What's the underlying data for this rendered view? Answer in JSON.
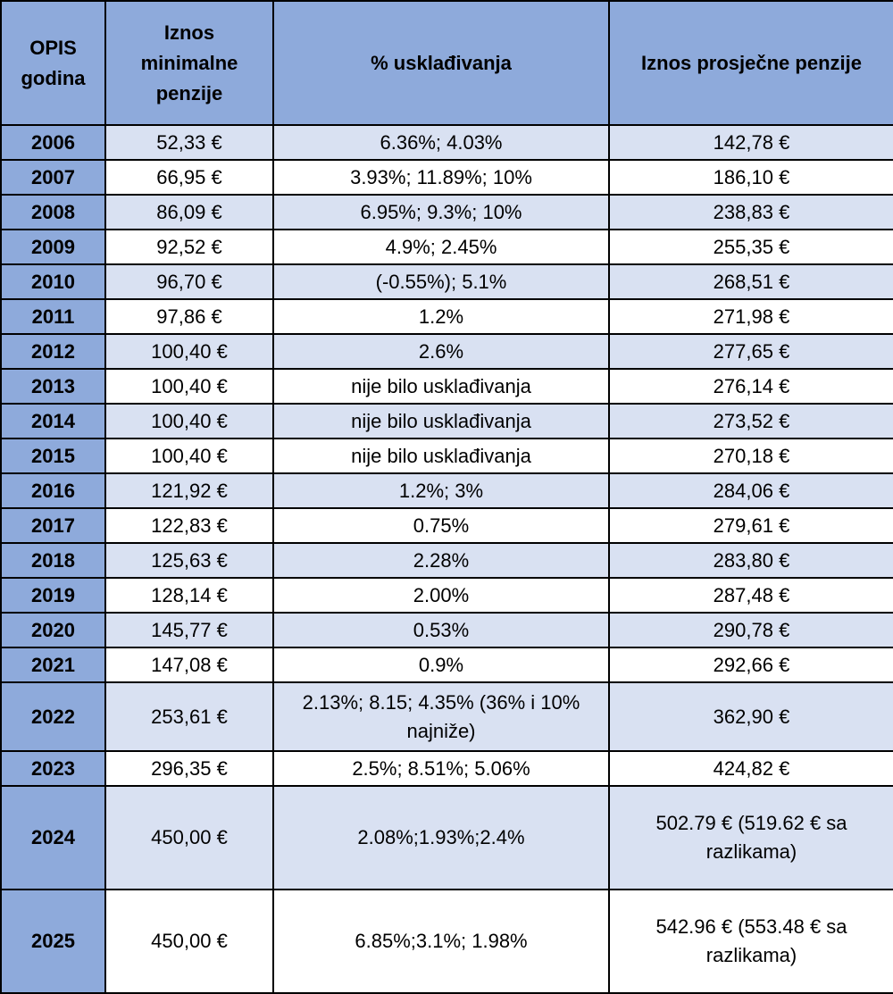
{
  "table": {
    "headers": {
      "year": "OPIS godina",
      "min_pension": "Iznos minimalne penzije",
      "adjustment": "% usklađivanja",
      "avg_pension": "Iznos prosječne penzije"
    },
    "rows": [
      {
        "year": "2006",
        "min": "52,33 €",
        "adj": "6.36%; 4.03%",
        "avg": "142,78 €"
      },
      {
        "year": "2007",
        "min": "66,95 €",
        "adj": "3.93%; 11.89%; 10%",
        "avg": "186,10 €"
      },
      {
        "year": "2008",
        "min": "86,09 €",
        "adj": "6.95%; 9.3%; 10%",
        "avg": "238,83 €"
      },
      {
        "year": "2009",
        "min": "92,52 €",
        "adj": "4.9%; 2.45%",
        "avg": "255,35 €"
      },
      {
        "year": "2010",
        "min": "96,70 €",
        "adj": "(-0.55%); 5.1%",
        "avg": "268,51 €"
      },
      {
        "year": "2011",
        "min": "97,86 €",
        "adj": "1.2%",
        "avg": "271,98 €"
      },
      {
        "year": "2012",
        "min": "100,40 €",
        "adj": "2.6%",
        "avg": "277,65 €"
      },
      {
        "year": "2013",
        "min": "100,40 €",
        "adj": "nije bilo usklađivanja",
        "avg": "276,14 €"
      },
      {
        "year": "2014",
        "min": "100,40 €",
        "adj": "nije bilo usklađivanja",
        "avg": "273,52 €"
      },
      {
        "year": "2015",
        "min": "100,40 €",
        "adj": "nije bilo usklađivanja",
        "avg": "270,18 €"
      },
      {
        "year": "2016",
        "min": "121,92 €",
        "adj": "1.2%; 3%",
        "avg": "284,06 €"
      },
      {
        "year": "2017",
        "min": "122,83 €",
        "adj": "0.75%",
        "avg": "279,61 €"
      },
      {
        "year": "2018",
        "min": "125,63 €",
        "adj": "2.28%",
        "avg": "283,80 €"
      },
      {
        "year": "2019",
        "min": "128,14 €",
        "adj": "2.00%",
        "avg": "287,48 €"
      },
      {
        "year": "2020",
        "min": "145,77 €",
        "adj": "0.53%",
        "avg": "290,78 €"
      },
      {
        "year": "2021",
        "min": "147,08 €",
        "adj": "0.9%",
        "avg": "292,66 €"
      },
      {
        "year": "2022",
        "min": "253,61 €",
        "adj": "2.13%; 8.15; 4.35% (36% i 10% najniže)",
        "avg": "362,90 €"
      },
      {
        "year": "2023",
        "min": "296,35 €",
        "adj": "2.5%; 8.51%; 5.06%",
        "avg": "424,82 €"
      },
      {
        "year": "2024",
        "min": "450,00 €",
        "adj": "2.08%;1.93%;2.4%",
        "avg": "502.79 € (519.62 € sa razlikama)"
      },
      {
        "year": "2025",
        "min": "450,00 €",
        "adj": "6.85%;3.1%; 1.98%",
        "avg": "542.96 € (553.48 € sa razlikama)"
      }
    ]
  },
  "colors": {
    "header_bg": "#8eaadb",
    "row_alt_bg": "#d9e1f2",
    "row_bg": "#ffffff",
    "border": "#000000"
  }
}
